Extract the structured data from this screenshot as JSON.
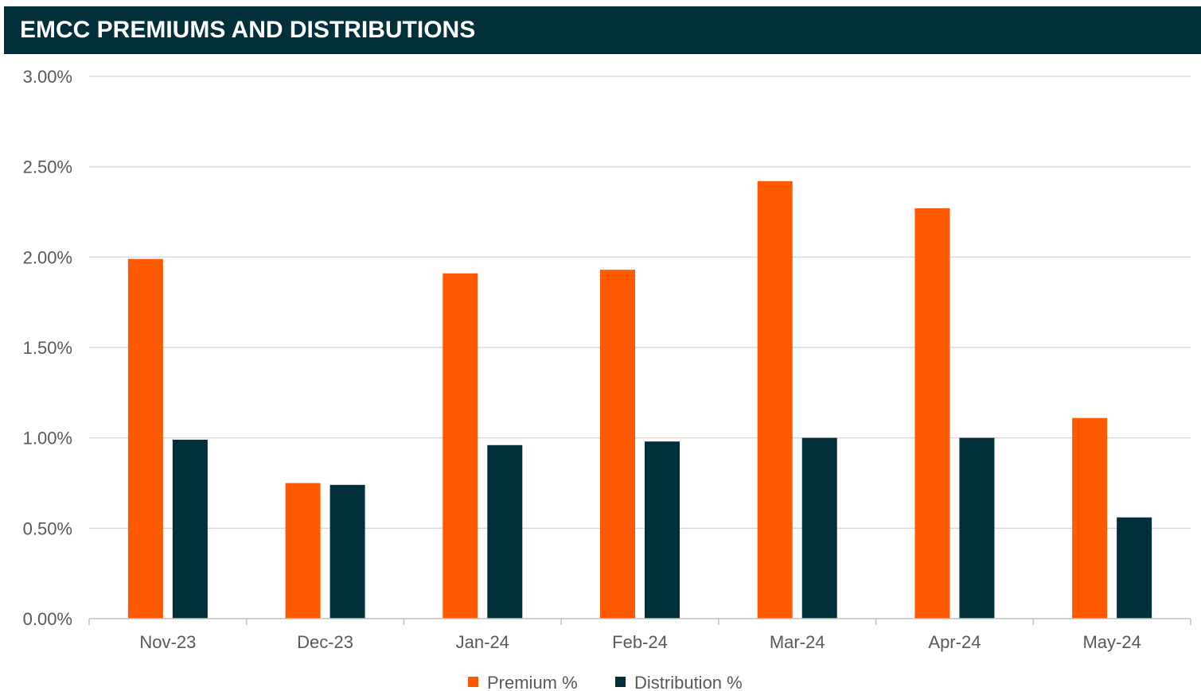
{
  "header": {
    "title": "EMCC PREMIUMS AND DISTRIBUTIONS"
  },
  "chart_data": {
    "type": "bar",
    "title": "EMCC PREMIUMS AND DISTRIBUTIONS",
    "categories": [
      "Nov-23",
      "Dec-23",
      "Jan-24",
      "Feb-24",
      "Mar-24",
      "Apr-24",
      "May-24"
    ],
    "series": [
      {
        "name": "Premium %",
        "color": "#ff5a00",
        "values": [
          1.99,
          0.75,
          1.91,
          1.93,
          2.42,
          2.27,
          1.11
        ]
      },
      {
        "name": "Distribution %",
        "color": "#02303a",
        "values": [
          0.99,
          0.74,
          0.96,
          0.98,
          1.0,
          1.0,
          0.56
        ]
      }
    ],
    "y_ticks": [
      "0.00%",
      "0.50%",
      "1.00%",
      "1.50%",
      "2.00%",
      "2.50%",
      "3.00%"
    ],
    "ylim": [
      0,
      3
    ],
    "xlabel": "",
    "ylabel": "",
    "grid": true,
    "legend_position": "bottom-center"
  }
}
